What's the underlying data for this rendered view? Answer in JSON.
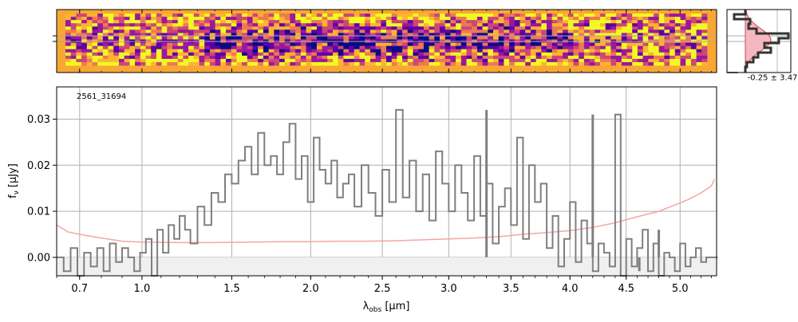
{
  "chart_data": [
    {
      "type": "heatmap",
      "panel": "2d-spectrum",
      "colormap": "plasma",
      "row_markers": 2,
      "x_ticks": [
        "0.7",
        "1.0",
        "1.5",
        "2.0",
        "2.5",
        "3.0",
        "3.5",
        "4.0",
        "4.5",
        "5.0"
      ]
    },
    {
      "type": "line",
      "panel": "1d-spectrum",
      "label": "2561_31694",
      "xlabel": "λobs [μm]",
      "ylabel": "fν [μJy]",
      "xlim": [
        0.6,
        5.35
      ],
      "ylim": [
        -0.004,
        0.037
      ],
      "x_scale": "reciprocal-sqrt (spectral resolution spacing)",
      "grid": true,
      "x_ticks": [
        {
          "v": 0.7,
          "label": "0.7"
        },
        {
          "v": 1.0,
          "label": "1.0"
        },
        {
          "v": 1.5,
          "label": "1.5"
        },
        {
          "v": 2.0,
          "label": "2.0"
        },
        {
          "v": 2.5,
          "label": "2.5"
        },
        {
          "v": 3.0,
          "label": "3.0"
        },
        {
          "v": 3.5,
          "label": "3.5"
        },
        {
          "v": 4.0,
          "label": "4.0"
        },
        {
          "v": 4.5,
          "label": "4.5"
        },
        {
          "v": 5.0,
          "label": "5.0"
        }
      ],
      "y_ticks": [
        {
          "v": 0.0,
          "label": "0.00"
        },
        {
          "v": 0.01,
          "label": "0.01"
        },
        {
          "v": 0.02,
          "label": "0.02"
        },
        {
          "v": 0.03,
          "label": "0.03"
        }
      ],
      "series": [
        {
          "role": "flux",
          "color": "#7f7f7f",
          "style": "steps",
          "x": [
            0.6,
            0.63,
            0.66,
            0.69,
            0.72,
            0.75,
            0.78,
            0.81,
            0.84,
            0.87,
            0.9,
            0.93,
            0.96,
            0.99,
            1.02,
            1.05,
            1.08,
            1.11,
            1.14,
            1.17,
            1.2,
            1.23,
            1.26,
            1.3,
            1.34,
            1.38,
            1.42,
            1.46,
            1.5,
            1.54,
            1.58,
            1.62,
            1.66,
            1.7,
            1.74,
            1.78,
            1.82,
            1.86,
            1.9,
            1.94,
            1.98,
            2.02,
            2.06,
            2.1,
            2.14,
            2.18,
            2.22,
            2.26,
            2.3,
            2.35,
            2.4,
            2.45,
            2.5,
            2.55,
            2.6,
            2.65,
            2.7,
            2.75,
            2.8,
            2.85,
            2.9,
            2.95,
            3.0,
            3.05,
            3.1,
            3.15,
            3.2,
            3.25,
            3.3,
            3.35,
            3.4,
            3.45,
            3.5,
            3.55,
            3.6,
            3.65,
            3.7,
            3.75,
            3.8,
            3.85,
            3.9,
            3.95,
            4.0,
            4.05,
            4.1,
            4.15,
            4.2,
            4.25,
            4.3,
            4.35,
            4.4,
            4.45,
            4.5,
            4.55,
            4.6,
            4.65,
            4.7,
            4.75,
            4.8,
            4.85,
            4.9,
            4.95,
            5.0,
            5.05,
            5.1,
            5.15,
            5.2,
            5.25,
            5.3,
            5.33
          ],
          "y": [
            0.0,
            -0.003,
            0.002,
            -0.004,
            0.001,
            -0.002,
            0.002,
            -0.003,
            0.003,
            -0.001,
            0.002,
            0.0,
            -0.003,
            0.001,
            0.004,
            -0.004,
            0.006,
            0.001,
            0.007,
            0.004,
            0.009,
            0.006,
            0.003,
            0.011,
            0.007,
            0.014,
            0.012,
            0.018,
            0.016,
            0.021,
            0.024,
            0.018,
            0.027,
            0.02,
            0.022,
            0.018,
            0.025,
            0.029,
            0.017,
            0.022,
            0.012,
            0.026,
            0.019,
            0.016,
            0.021,
            0.013,
            0.016,
            0.018,
            0.011,
            0.02,
            0.014,
            0.009,
            0.019,
            0.012,
            0.032,
            0.013,
            0.021,
            0.01,
            0.018,
            0.008,
            0.023,
            0.016,
            0.01,
            0.02,
            0.014,
            0.008,
            0.022,
            0.009,
            0.016,
            0.003,
            0.011,
            0.015,
            0.007,
            0.026,
            0.004,
            0.02,
            0.012,
            0.016,
            0.002,
            0.009,
            -0.002,
            0.004,
            0.012,
            -0.001,
            0.008,
            0.003,
            -0.003,
            0.003,
            0.001,
            -0.002,
            0.031,
            -0.004,
            0.004,
            -0.002,
            0.002,
            0.006,
            -0.003,
            0.003,
            -0.004,
            0.001,
            0.0,
            -0.003,
            0.003,
            -0.002,
            0.0,
            0.002,
            -0.001,
            0.0,
            0.0,
            0.0
          ],
          "spikes": [
            {
              "x": 3.3,
              "v": 0.032
            },
            {
              "x": 4.2,
              "v": 0.031
            },
            {
              "x": 4.62,
              "v": -0.003
            },
            {
              "x": 4.8,
              "v": 0.006
            }
          ]
        },
        {
          "role": "error",
          "color": "#f4a6a6",
          "style": "line",
          "x": [
            0.6,
            0.65,
            0.7,
            0.8,
            0.9,
            1.0,
            1.2,
            1.4,
            1.6,
            1.8,
            2.0,
            2.2,
            2.4,
            2.6,
            2.8,
            3.0,
            3.2,
            3.4,
            3.6,
            3.8,
            4.0,
            4.2,
            4.4,
            4.6,
            4.8,
            5.0,
            5.1,
            5.2,
            5.3,
            5.33
          ],
          "y": [
            0.007,
            0.0055,
            0.005,
            0.0042,
            0.0035,
            0.0033,
            0.0032,
            0.0032,
            0.0033,
            0.0034,
            0.0034,
            0.0035,
            0.0035,
            0.0036,
            0.0038,
            0.004,
            0.0042,
            0.0045,
            0.005,
            0.0054,
            0.0058,
            0.0065,
            0.0075,
            0.0088,
            0.01,
            0.0118,
            0.0128,
            0.014,
            0.0155,
            0.017
          ]
        }
      ]
    },
    {
      "type": "histogram",
      "panel": "residual-histogram",
      "annotation": "-0.25 ± 3.47",
      "colors": {
        "hist": "#333333",
        "gauss": "#d04050",
        "fill": "#f5b8c0"
      }
    }
  ]
}
